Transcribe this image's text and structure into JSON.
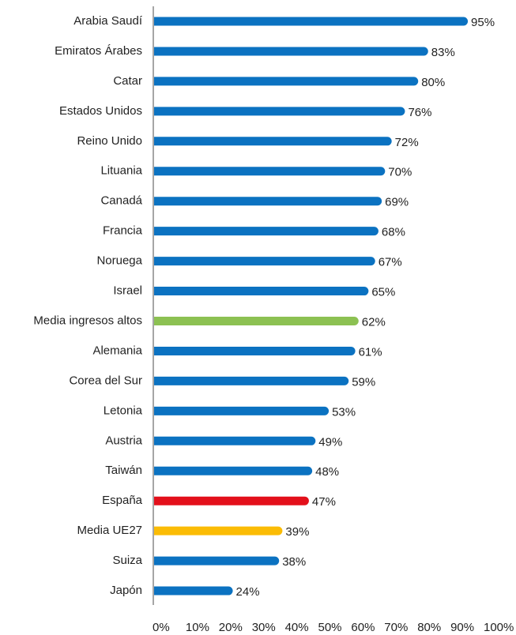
{
  "chart_data": {
    "type": "bar",
    "orientation": "horizontal",
    "categories": [
      "Arabia Saudí",
      "Emiratos Árabes",
      "Catar",
      "Estados Unidos",
      "Reino Unido",
      "Lituania",
      "Canadá",
      "Francia",
      "Noruega",
      "Israel",
      "Media ingresos altos",
      "Alemania",
      "Corea del Sur",
      "Letonia",
      "Austria",
      "Taiwán",
      "España",
      "Media UE27",
      "Suiza",
      "Japón"
    ],
    "values": [
      95,
      83,
      80,
      76,
      72,
      70,
      69,
      68,
      67,
      65,
      62,
      61,
      59,
      53,
      49,
      48,
      47,
      39,
      38,
      24
    ],
    "value_labels": [
      "95%",
      "83%",
      "80%",
      "76%",
      "72%",
      "70%",
      "69%",
      "68%",
      "67%",
      "65%",
      "62%",
      "61%",
      "59%",
      "53%",
      "49%",
      "48%",
      "47%",
      "39%",
      "38%",
      "24%"
    ],
    "colors": [
      "#0b72c1",
      "#0b72c1",
      "#0b72c1",
      "#0b72c1",
      "#0b72c1",
      "#0b72c1",
      "#0b72c1",
      "#0b72c1",
      "#0b72c1",
      "#0b72c1",
      "#8cc152",
      "#0b72c1",
      "#0b72c1",
      "#0b72c1",
      "#0b72c1",
      "#0b72c1",
      "#e3101b",
      "#fbbc05",
      "#0b72c1",
      "#0b72c1"
    ],
    "xlim": [
      0,
      100
    ],
    "xticks": [
      {
        "value": 0,
        "label": "0%"
      },
      {
        "value": 10,
        "label": "10%"
      },
      {
        "value": 20,
        "label": "20%"
      },
      {
        "value": 30,
        "label": "30%"
      },
      {
        "value": 40,
        "label": "40%"
      },
      {
        "value": 50,
        "label": "50%"
      },
      {
        "value": 60,
        "label": "60%"
      },
      {
        "value": 70,
        "label": "70%"
      },
      {
        "value": 80,
        "label": "80%"
      },
      {
        "value": 90,
        "label": "90%"
      },
      {
        "value": 100,
        "label": "100%"
      }
    ]
  }
}
